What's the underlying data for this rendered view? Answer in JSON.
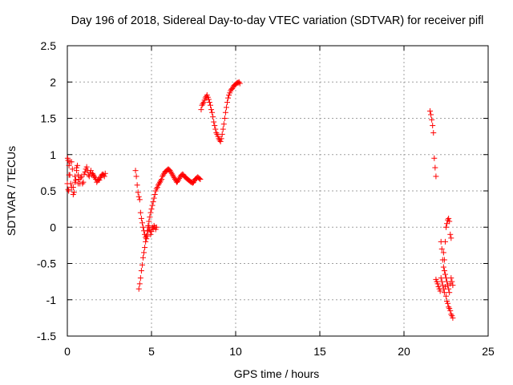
{
  "chart_data": {
    "type": "scatter",
    "title": "Day 196 of 2018, Sidereal Day-to-day VTEC variation (SDTVAR) for receiver pifl",
    "xlabel": "GPS time / hours",
    "ylabel": "SDTVAR / TECUs",
    "xlim": [
      0,
      25
    ],
    "ylim": [
      -1.5,
      2.5
    ],
    "xticks": [
      0,
      5,
      10,
      15,
      20,
      25
    ],
    "yticks": [
      -1.5,
      -1,
      -0.5,
      0,
      0.5,
      1,
      1.5,
      2,
      2.5
    ],
    "grid": true,
    "legend": "none",
    "marker": "plus",
    "color": "#ff0000",
    "series": [
      {
        "x": [
          0.0,
          0.05,
          0.1,
          0.15,
          0.2,
          0.25,
          0.3,
          0.35,
          0.4,
          0.45,
          0.5,
          0.55,
          0.6,
          0.65,
          0.7,
          0.75,
          0.8,
          0.85,
          0.9,
          0.95,
          1.0,
          1.05,
          1.1,
          1.15,
          1.2,
          1.25,
          1.3,
          1.35,
          1.4,
          1.45,
          1.5,
          1.55,
          1.6,
          1.65,
          1.7,
          1.75,
          1.8,
          1.85,
          1.9,
          1.95,
          2.0,
          2.05,
          2.1,
          2.15,
          2.2,
          2.25,
          0.05,
          0.1,
          0.15,
          0.25,
          0.35,
          0.45,
          0.55,
          0.65,
          0.02,
          0.08
        ],
        "y": [
          0.6,
          0.92,
          0.85,
          0.72,
          0.6,
          0.9,
          0.8,
          0.55,
          0.48,
          0.7,
          0.65,
          0.82,
          0.85,
          0.72,
          0.66,
          0.6,
          0.68,
          0.7,
          0.6,
          0.62,
          0.73,
          0.76,
          0.8,
          0.83,
          0.78,
          0.72,
          0.7,
          0.75,
          0.78,
          0.72,
          0.74,
          0.72,
          0.7,
          0.68,
          0.66,
          0.62,
          0.64,
          0.66,
          0.65,
          0.68,
          0.7,
          0.72,
          0.73,
          0.72,
          0.7,
          0.74,
          0.52,
          0.72,
          0.9,
          0.55,
          0.45,
          0.62,
          0.78,
          0.6,
          0.95,
          0.5
        ]
      },
      {
        "x": [
          4.05,
          4.1,
          4.15,
          4.2,
          4.25,
          4.3,
          4.35,
          4.4,
          4.45,
          4.5,
          4.55,
          4.6,
          4.65,
          4.7,
          4.75,
          4.8,
          4.85,
          4.9,
          4.95,
          5.0,
          5.05,
          5.1,
          5.15,
          5.2,
          5.25,
          5.3,
          4.25,
          4.3,
          4.35,
          4.4,
          4.45,
          4.5,
          4.55,
          4.6,
          4.65,
          4.7,
          4.75,
          4.8,
          4.85,
          4.9,
          4.95,
          5.0,
          5.05,
          5.1,
          5.15,
          5.2,
          5.25,
          5.3,
          5.35,
          5.4,
          5.45,
          5.5,
          5.55,
          5.6,
          5.65,
          5.7,
          5.75,
          5.8,
          5.85,
          5.9,
          5.95,
          6.0,
          6.05,
          6.1,
          6.15,
          6.2,
          6.25,
          6.3,
          6.35,
          6.4,
          6.45,
          6.5,
          6.55,
          6.6,
          6.65,
          6.7,
          6.75,
          6.8,
          6.85,
          6.9,
          6.95,
          7.0,
          7.05,
          7.1,
          7.15,
          7.2,
          7.25,
          7.3,
          7.35,
          7.4,
          7.45,
          7.5,
          7.55,
          7.6,
          7.65,
          7.7,
          7.75,
          7.8,
          7.85,
          7.9
        ],
        "y": [
          0.78,
          0.7,
          0.58,
          0.48,
          0.42,
          0.38,
          0.2,
          0.12,
          0.06,
          0.0,
          -0.05,
          -0.1,
          -0.14,
          -0.16,
          -0.12,
          -0.05,
          0.0,
          -0.04,
          -0.1,
          -0.06,
          0.0,
          -0.02,
          0.02,
          0.0,
          -0.03,
          0.0,
          -0.85,
          -0.78,
          -0.7,
          -0.6,
          -0.52,
          -0.42,
          -0.35,
          -0.28,
          -0.2,
          -0.12,
          -0.05,
          0.02,
          0.08,
          0.14,
          0.2,
          0.25,
          0.3,
          0.35,
          0.4,
          0.45,
          0.5,
          0.53,
          0.55,
          0.58,
          0.6,
          0.62,
          0.64,
          0.66,
          0.7,
          0.72,
          0.74,
          0.76,
          0.77,
          0.78,
          0.79,
          0.8,
          0.79,
          0.78,
          0.76,
          0.74,
          0.72,
          0.7,
          0.68,
          0.66,
          0.64,
          0.62,
          0.63,
          0.65,
          0.67,
          0.69,
          0.71,
          0.72,
          0.73,
          0.72,
          0.7,
          0.69,
          0.68,
          0.67,
          0.66,
          0.65,
          0.64,
          0.63,
          0.62,
          0.62,
          0.61,
          0.62,
          0.64,
          0.66,
          0.67,
          0.68,
          0.69,
          0.68,
          0.67,
          0.66
        ]
      },
      {
        "x": [
          7.95,
          8.0,
          8.05,
          8.1,
          8.15,
          8.2,
          8.25,
          8.3,
          8.35,
          8.4,
          8.45,
          8.5,
          8.55,
          8.6,
          8.65,
          8.7,
          8.75,
          8.8,
          8.85,
          8.9,
          8.95,
          9.0,
          9.05,
          9.1,
          9.15,
          9.2,
          9.25,
          9.3,
          9.35,
          9.4,
          9.45,
          9.5,
          9.55,
          9.6,
          9.65,
          9.7,
          9.75,
          9.8,
          9.85,
          9.9,
          9.95,
          10.0,
          10.05,
          10.1,
          10.15,
          10.2,
          10.25
        ],
        "y": [
          1.62,
          1.68,
          1.7,
          1.72,
          1.75,
          1.78,
          1.8,
          1.82,
          1.79,
          1.76,
          1.72,
          1.68,
          1.62,
          1.58,
          1.52,
          1.45,
          1.4,
          1.35,
          1.3,
          1.28,
          1.25,
          1.22,
          1.2,
          1.18,
          1.22,
          1.28,
          1.35,
          1.42,
          1.5,
          1.58,
          1.65,
          1.72,
          1.78,
          1.82,
          1.85,
          1.88,
          1.9,
          1.91,
          1.93,
          1.95,
          1.96,
          1.97,
          1.98,
          1.99,
          1.99,
          2.0,
          1.98
        ]
      },
      {
        "x": [
          21.55,
          21.6,
          21.65,
          21.7,
          21.75,
          21.8,
          21.85,
          21.9
        ],
        "y": [
          1.6,
          1.55,
          1.48,
          1.4,
          1.3,
          0.95,
          0.82,
          0.7
        ]
      },
      {
        "x": [
          21.9,
          21.95,
          22.0,
          22.05,
          22.1,
          22.15,
          22.2,
          22.25,
          22.3,
          22.35,
          22.4,
          22.45,
          22.5,
          22.55,
          22.6,
          22.65,
          22.7,
          22.75,
          22.8,
          22.85,
          22.9,
          22.2,
          22.25,
          22.3,
          22.35,
          22.4,
          22.45,
          22.5,
          22.55,
          22.6,
          22.65,
          22.7,
          22.75,
          22.8,
          22.85,
          22.9,
          22.35,
          22.4,
          22.45,
          22.5,
          22.55,
          22.6,
          22.65,
          22.7,
          22.75,
          22.8
        ],
        "y": [
          -0.72,
          -0.75,
          -0.78,
          -0.82,
          -0.85,
          -0.88,
          -0.7,
          -0.75,
          -0.8,
          -0.85,
          -0.9,
          -0.82,
          -0.95,
          -1.02,
          -1.05,
          -1.1,
          -1.12,
          -1.15,
          -1.2,
          -1.22,
          -1.25,
          -0.2,
          -0.3,
          -0.45,
          -0.55,
          -0.6,
          -0.65,
          -0.7,
          -0.75,
          -0.8,
          -0.85,
          -0.9,
          -0.78,
          -0.7,
          -0.75,
          -0.8,
          -0.35,
          -0.45,
          -0.2,
          0.0,
          0.05,
          0.1,
          0.12,
          0.08,
          -0.1,
          -0.15
        ]
      }
    ]
  }
}
